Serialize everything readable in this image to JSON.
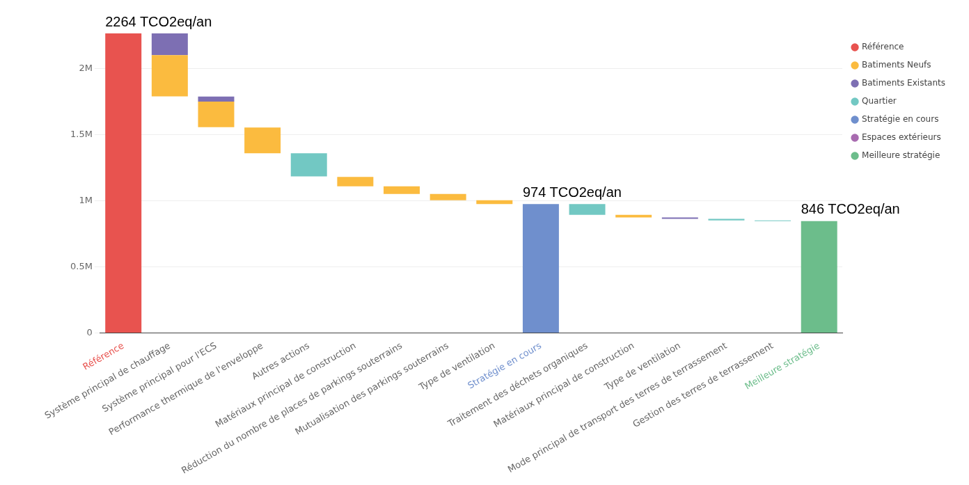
{
  "chart_data": {
    "type": "bar",
    "categories": [
      "Référence",
      "Système principal de chauffage",
      "Système principal pour l'ECS",
      "Performance thermique de l'enveloppe",
      "Autres actions",
      "Matériaux principal de construction",
      "Réduction du nombre de places de parkings souterrains",
      "Mutualisation des parkings souterrains",
      "Type de ventilation",
      "Stratégie en cours",
      "Traitement des déchets organiques",
      "Matériaux principal de construction",
      "Type de ventilation",
      "Mode principal de transport des terres de terrassement",
      "Gestion des terres de terrassement",
      "Meilleure stratégie"
    ],
    "series": [
      {
        "name": "Référence",
        "color": "#e8534f",
        "values": [
          2264000,
          null,
          null,
          null,
          null,
          null,
          null,
          null,
          null,
          null,
          null,
          null,
          null,
          null,
          null,
          null
        ],
        "base": [
          0,
          null,
          null,
          null,
          null,
          null,
          null,
          null,
          null,
          null,
          null,
          null,
          null,
          null,
          null,
          null
        ]
      },
      {
        "name": "Batiments Neufs",
        "color": "#fbbb3f",
        "values": [
          null,
          312000,
          193000,
          195000,
          null,
          71000,
          59000,
          47000,
          29000,
          null,
          null,
          20000,
          null,
          null,
          null,
          null
        ],
        "base": [
          null,
          1788000,
          1556000,
          1358000,
          null,
          1109000,
          1050000,
          1003000,
          974000,
          null,
          null,
          873000,
          null,
          null,
          null,
          null
        ]
      },
      {
        "name": "Batiments Existants",
        "color": "#7d6fb3",
        "values": [
          null,
          164000,
          38000,
          null,
          null,
          null,
          null,
          null,
          null,
          null,
          null,
          null,
          11000,
          null,
          null,
          null
        ],
        "base": [
          null,
          2100000,
          1749000,
          null,
          null,
          null,
          null,
          null,
          null,
          null,
          null,
          null,
          862000,
          null,
          null,
          null
        ]
      },
      {
        "name": "Quartier",
        "color": "#72c8c3",
        "values": [
          null,
          null,
          null,
          null,
          175000,
          null,
          null,
          null,
          null,
          null,
          81000,
          null,
          null,
          11000,
          5000,
          null
        ],
        "base": [
          null,
          null,
          null,
          null,
          1183000,
          null,
          null,
          null,
          null,
          null,
          893000,
          null,
          null,
          851000,
          846000,
          null
        ]
      },
      {
        "name": "Stratégie en cours",
        "color": "#6f8fcd",
        "values": [
          null,
          null,
          null,
          null,
          null,
          null,
          null,
          null,
          null,
          974000,
          null,
          null,
          null,
          null,
          null,
          null
        ],
        "base": [
          null,
          null,
          null,
          null,
          null,
          null,
          null,
          null,
          null,
          0,
          null,
          null,
          null,
          null,
          null,
          null
        ]
      },
      {
        "name": "Espaces extérieurs",
        "color": "#a86bb0",
        "values": [
          null,
          null,
          null,
          null,
          null,
          null,
          null,
          null,
          null,
          null,
          null,
          null,
          null,
          null,
          null,
          null
        ],
        "base": [
          null,
          null,
          null,
          null,
          null,
          null,
          null,
          null,
          null,
          null,
          null,
          null,
          null,
          null,
          null,
          null
        ]
      },
      {
        "name": "Meilleure stratégie",
        "color": "#6cbd8b",
        "values": [
          null,
          null,
          null,
          null,
          null,
          null,
          null,
          null,
          null,
          null,
          null,
          null,
          null,
          null,
          null,
          846000
        ],
        "base": [
          null,
          null,
          null,
          null,
          null,
          null,
          null,
          null,
          null,
          null,
          null,
          null,
          null,
          null,
          null,
          0
        ]
      }
    ],
    "ylim": [
      0,
      2264000
    ],
    "yticks": [
      0,
      {
        "value": 500000,
        "label": "0.5M"
      },
      {
        "value": 1000000,
        "label": "1M"
      },
      {
        "value": 1500000,
        "label": "1.5M"
      },
      {
        "value": 2000000,
        "label": "2M"
      }
    ],
    "grid": "y",
    "legend": "top right",
    "annotations": [
      {
        "text": "2264 TCO2eq/an",
        "x": "Référence",
        "y": 2264000
      },
      {
        "text": "974 TCO2eq/an",
        "x": "Stratégie en cours",
        "y": 974000
      },
      {
        "text": "846 TCO2eq/an",
        "x": "Meilleure stratégie",
        "y": 846000
      }
    ]
  }
}
